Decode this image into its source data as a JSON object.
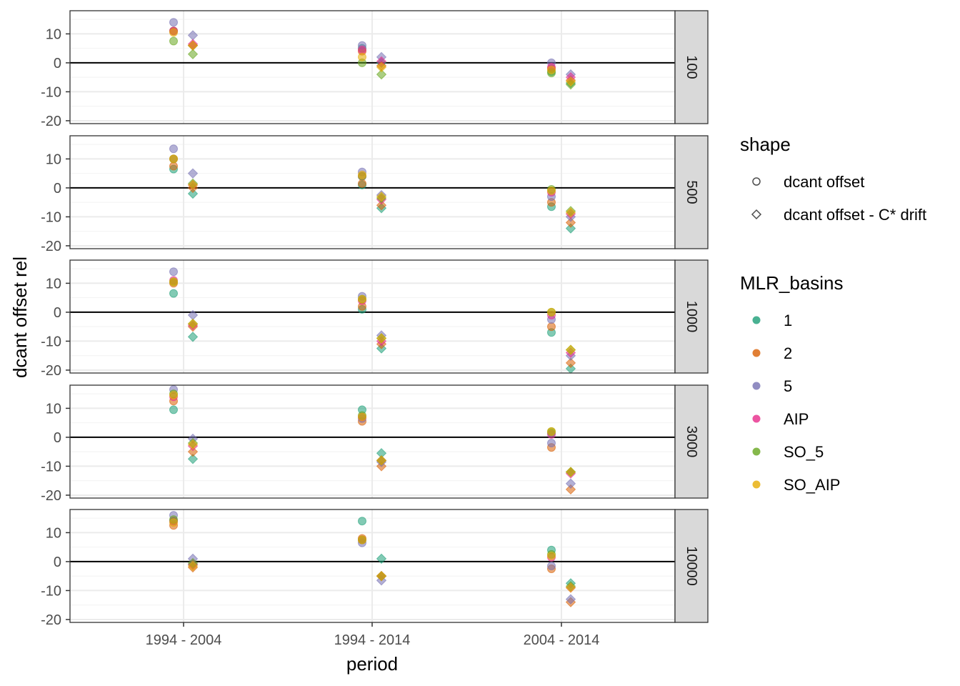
{
  "chart_data": {
    "type": "scatter",
    "xlabel": "period",
    "ylabel": "dcant offset rel",
    "categories": [
      "1994 - 2004",
      "1994 - 2014",
      "2004 - 2014"
    ],
    "y_ticks": [
      -20,
      -10,
      0,
      10
    ],
    "ylim": [
      -21,
      18
    ],
    "grid": true,
    "reference_line_y": 0,
    "facet_labels": [
      "100",
      "500",
      "1000",
      "3000",
      "10000"
    ],
    "legend_position": "right",
    "shape_legend": {
      "title": "shape",
      "items": [
        {
          "label": "dcant offset",
          "shape": "circle"
        },
        {
          "label": "dcant offset - C* drift",
          "shape": "diamond"
        }
      ]
    },
    "color_legend": {
      "title": "MLR_basins",
      "items": [
        {
          "label": "1",
          "color": "#1b9e77"
        },
        {
          "label": "2",
          "color": "#d95f02"
        },
        {
          "label": "5",
          "color": "#7570b3"
        },
        {
          "label": "AIP",
          "color": "#e7298a"
        },
        {
          "label": "SO_5",
          "color": "#66a61e"
        },
        {
          "label": "SO_AIP",
          "color": "#e6ab02"
        }
      ]
    },
    "panels": [
      {
        "facet": "100",
        "series": [
          {
            "basin": "1",
            "circle": [
              11,
              5,
              -3
            ],
            "diamond": [
              6,
              0,
              -7
            ]
          },
          {
            "basin": "2",
            "circle": [
              11,
              4,
              -2
            ],
            "diamond": [
              6,
              -1,
              -6
            ]
          },
          {
            "basin": "5",
            "circle": [
              14,
              6,
              0
            ],
            "diamond": [
              9.5,
              2,
              -4
            ]
          },
          {
            "basin": "AIP",
            "circle": [
              11,
              4.5,
              -1.5
            ],
            "diamond": [
              6.5,
              0.5,
              -5
            ]
          },
          {
            "basin": "SO_5",
            "circle": [
              7.5,
              0,
              -3.5
            ],
            "diamond": [
              3,
              -4,
              -7.5
            ]
          },
          {
            "basin": "SO_AIP",
            "circle": [
              10.5,
              2,
              -2.5
            ],
            "diamond": [
              6,
              -1.5,
              -6.5
            ]
          }
        ]
      },
      {
        "facet": "500",
        "series": [
          {
            "basin": "1",
            "circle": [
              6.5,
              1,
              -6.5
            ],
            "diamond": [
              -2,
              -7,
              -14
            ]
          },
          {
            "basin": "2",
            "circle": [
              7.5,
              1.5,
              -5
            ],
            "diamond": [
              0,
              -6,
              -12
            ]
          },
          {
            "basin": "5",
            "circle": [
              13.5,
              5.5,
              -3
            ],
            "diamond": [
              5,
              -2.5,
              -10
            ]
          },
          {
            "basin": "AIP",
            "circle": [
              10,
              4,
              -1.5
            ],
            "diamond": [
              1,
              -4,
              -9
            ]
          },
          {
            "basin": "SO_5",
            "circle": [
              10,
              4,
              -0.5
            ],
            "diamond": [
              1.5,
              -3.5,
              -8
            ]
          },
          {
            "basin": "SO_AIP",
            "circle": [
              10,
              4.5,
              -1
            ],
            "diamond": [
              1,
              -3,
              -8.5
            ]
          }
        ]
      },
      {
        "facet": "1000",
        "series": [
          {
            "basin": "1",
            "circle": [
              6.5,
              1,
              -7
            ],
            "diamond": [
              -8.5,
              -12.5,
              -19.5
            ]
          },
          {
            "basin": "2",
            "circle": [
              10,
              2,
              -5
            ],
            "diamond": [
              -5,
              -11,
              -17.5
            ]
          },
          {
            "basin": "5",
            "circle": [
              14,
              5.5,
              -2.5
            ],
            "diamond": [
              -1,
              -8,
              -15
            ]
          },
          {
            "basin": "AIP",
            "circle": [
              11,
              4,
              -1
            ],
            "diamond": [
              -4.5,
              -10,
              -14
            ]
          },
          {
            "basin": "SO_5",
            "circle": [
              10.5,
              4.5,
              0
            ],
            "diamond": [
              -4,
              -9,
              -13
            ]
          },
          {
            "basin": "SO_AIP",
            "circle": [
              10.5,
              4.5,
              0
            ],
            "diamond": [
              -4,
              -9,
              -13
            ]
          }
        ]
      },
      {
        "facet": "3000",
        "series": [
          {
            "basin": "1",
            "circle": [
              9.5,
              9.5,
              1.5
            ],
            "diamond": [
              -7.5,
              -5.5,
              -12
            ]
          },
          {
            "basin": "2",
            "circle": [
              12.5,
              5.5,
              -3.5
            ],
            "diamond": [
              -5,
              -10,
              -18
            ]
          },
          {
            "basin": "5",
            "circle": [
              16.5,
              6.5,
              -2
            ],
            "diamond": [
              -0.5,
              -8.5,
              -16
            ]
          },
          {
            "basin": "AIP",
            "circle": [
              14,
              7,
              1
            ],
            "diamond": [
              -3,
              -8,
              -12.5
            ]
          },
          {
            "basin": "SO_5",
            "circle": [
              15,
              7.5,
              2
            ],
            "diamond": [
              -2,
              -8,
              -12
            ]
          },
          {
            "basin": "SO_AIP",
            "circle": [
              14.5,
              7,
              2
            ],
            "diamond": [
              -2.5,
              -8,
              -12
            ]
          }
        ]
      },
      {
        "facet": "10000",
        "series": [
          {
            "basin": "1",
            "circle": [
              14,
              14,
              4
            ],
            "diamond": [
              -1,
              1,
              -7.5
            ]
          },
          {
            "basin": "2",
            "circle": [
              12.5,
              8,
              -2.5
            ],
            "diamond": [
              -2,
              -5,
              -14
            ]
          },
          {
            "basin": "5",
            "circle": [
              16,
              6.5,
              -1.5
            ],
            "diamond": [
              1,
              -6.5,
              -13
            ]
          },
          {
            "basin": "AIP",
            "circle": [
              14,
              7.5,
              1.5
            ],
            "diamond": [
              -1,
              -5,
              -9
            ]
          },
          {
            "basin": "SO_5",
            "circle": [
              14.5,
              7.5,
              2.5
            ],
            "diamond": [
              -0.5,
              -5,
              -8.5
            ]
          },
          {
            "basin": "SO_AIP",
            "circle": [
              13.5,
              7.5,
              2
            ],
            "diamond": [
              -1.5,
              -5,
              -9
            ]
          }
        ]
      }
    ]
  }
}
